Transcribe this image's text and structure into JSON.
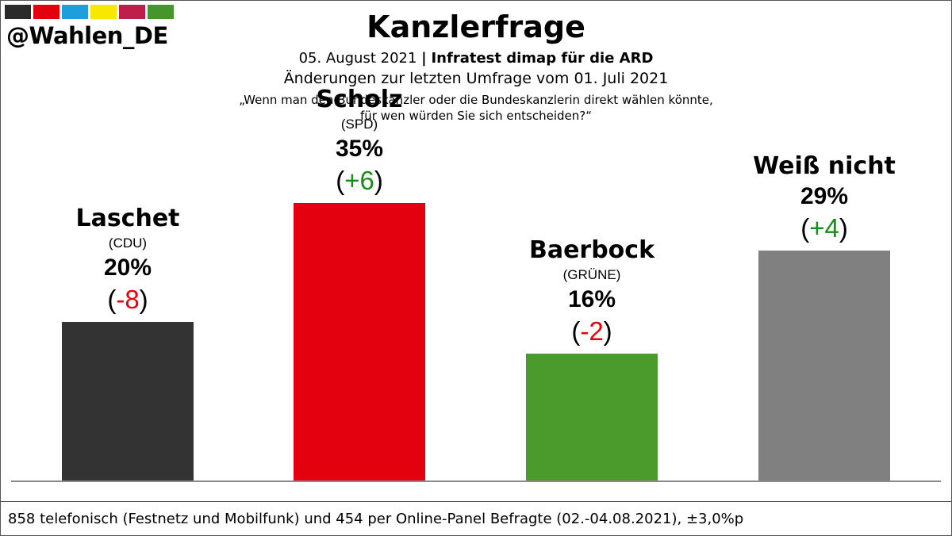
{
  "brand": {
    "swatch_colors": [
      "#2b2b2b",
      "#e3000f",
      "#1e9fdb",
      "#f7e800",
      "#bf1d4a",
      "#46962b"
    ],
    "handle": "@Wahlen_DE"
  },
  "header": {
    "title": "Kanzlerfrage",
    "date": "05. August 2021",
    "separator": "|",
    "source": "Infratest dimap für die ARD",
    "comparison": "Änderungen zur letzten Umfrage vom 01. Juli 2021",
    "question_line1": "„Wenn man den Bundeskanzler oder die Bundeskanzlerin direkt wählen könnte,",
    "question_line2": "für wen würden Sie sich entscheiden?“"
  },
  "chart_data": {
    "type": "bar",
    "title": "Kanzlerfrage",
    "categories": [
      "Laschet",
      "Scholz",
      "Baerbock",
      "Weiß nicht"
    ],
    "parties": [
      "(CDU)",
      "(SPD)",
      "(GRÜNE)",
      ""
    ],
    "values": [
      20,
      35,
      16,
      29
    ],
    "value_labels": [
      "20%",
      "35%",
      "16%",
      "29%"
    ],
    "changes": [
      -8,
      6,
      -2,
      4
    ],
    "change_labels": [
      "-8",
      "+6",
      "-2",
      "+4"
    ],
    "colors": [
      "#333333",
      "#e3000f",
      "#4a9a2c",
      "#808080"
    ],
    "change_colors": {
      "negative": "#e3000f",
      "positive": "#1a8c1a"
    },
    "ylim": [
      0,
      40
    ],
    "xlabel": "",
    "ylabel": ""
  },
  "footer": {
    "text": "858 telefonisch (Festnetz und Mobilfunk) und 454 per Online-Panel Befragte (02.-04.08.2021), ±3,0%p"
  }
}
